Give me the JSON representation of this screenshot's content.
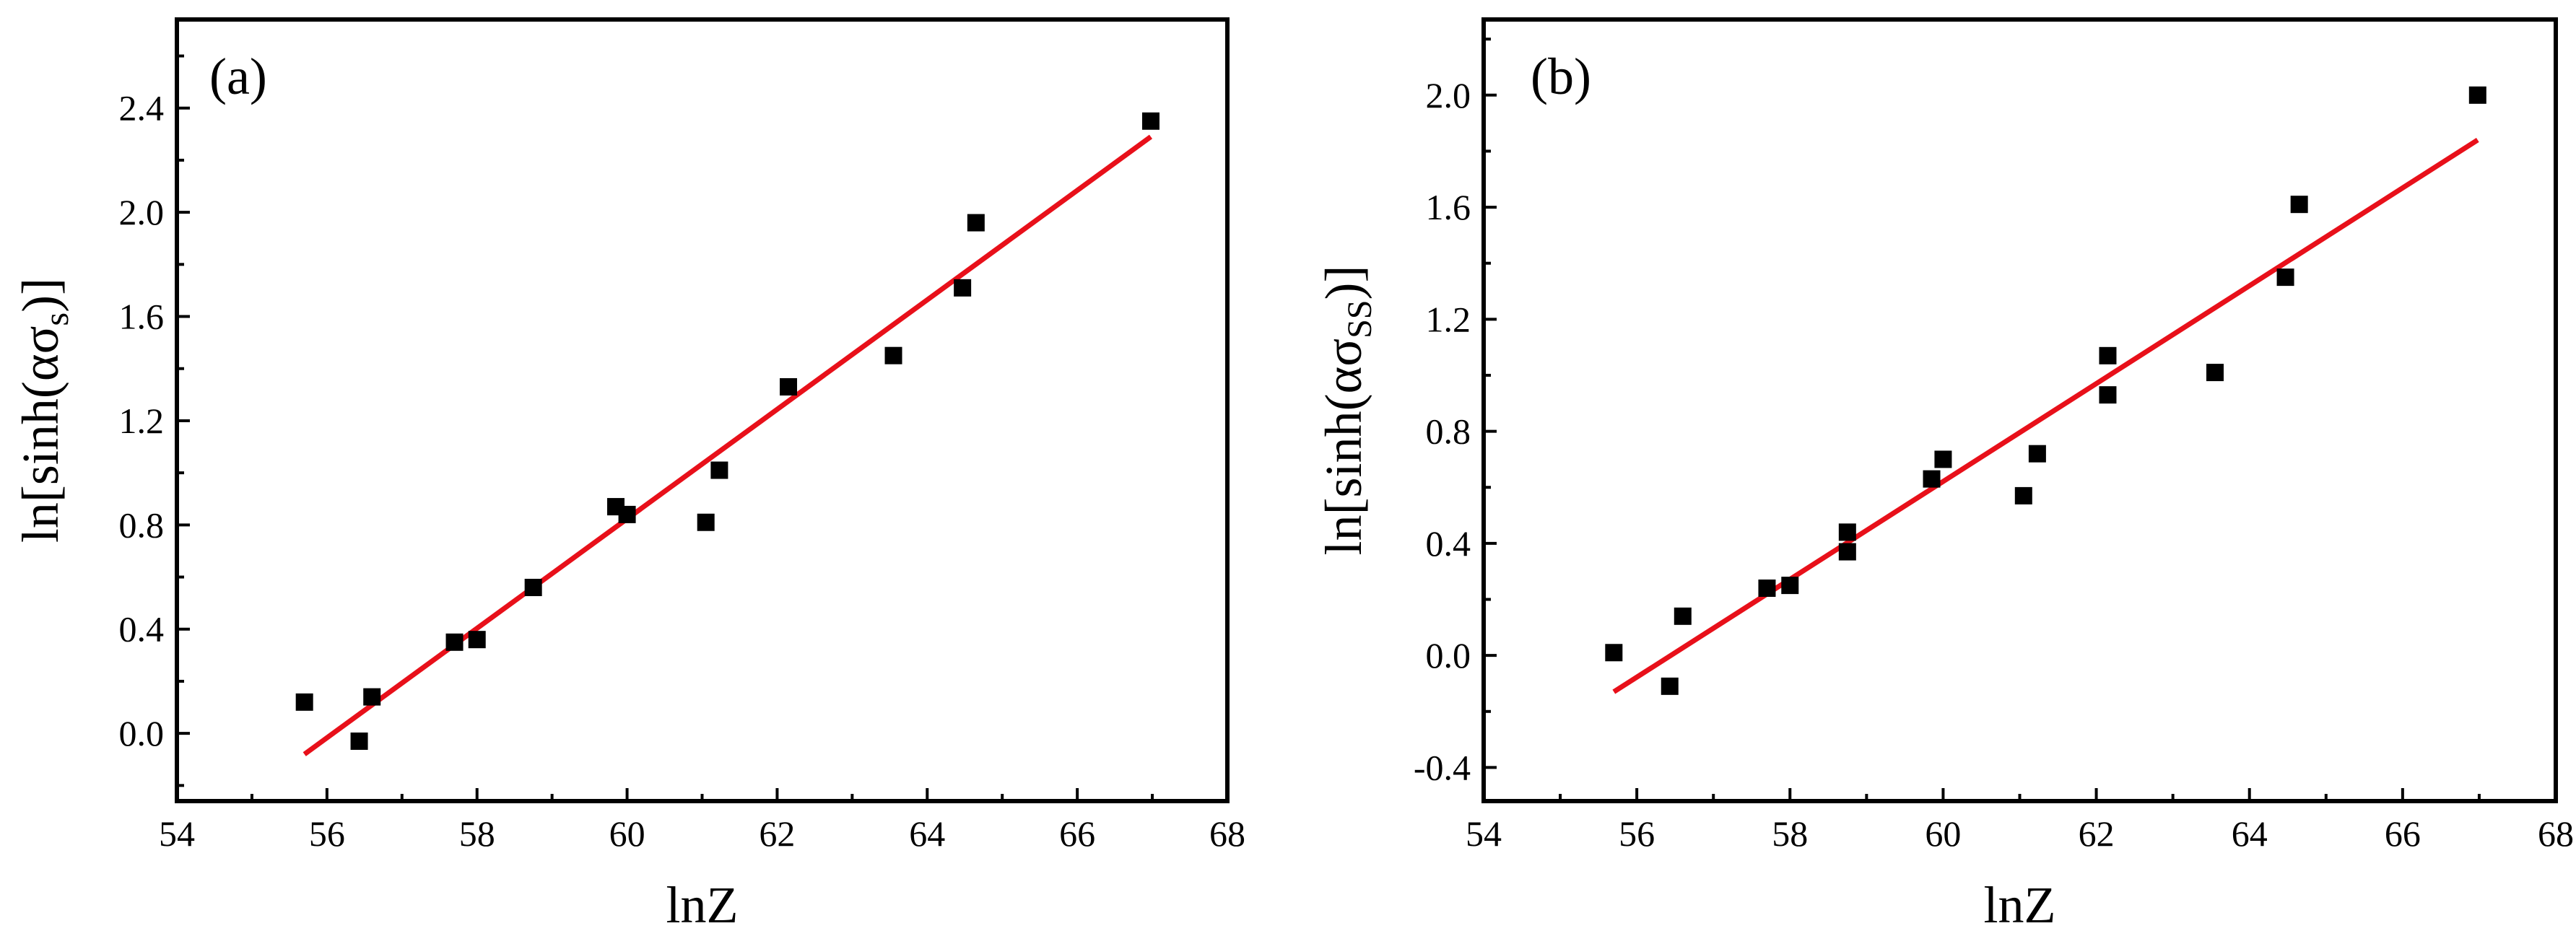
{
  "colors": {
    "fit_line": "#e8101a",
    "points": "#000000",
    "axes": "#000000",
    "background": "#ffffff"
  },
  "chart_data": [
    {
      "type": "scatter",
      "panel_label": "(a)",
      "xlabel": "lnZ",
      "ylabel_main": "ln[sinh(ασ",
      "ylabel_sub": "s",
      "ylabel_close": ")]",
      "xlim": [
        54,
        68
      ],
      "ylim": [
        -0.26,
        2.74
      ],
      "xticks": [
        54,
        56,
        58,
        60,
        62,
        64,
        66,
        68
      ],
      "xtick_labels": [
        "54",
        "56",
        "58",
        "60",
        "62",
        "64",
        "66",
        "68"
      ],
      "yticks": [
        0.0,
        0.4,
        0.8,
        1.2,
        1.6,
        2.0,
        2.4
      ],
      "ytick_labels": [
        "0.0",
        "0.4",
        "0.8",
        "1.2",
        "1.6",
        "2.0",
        "2.4"
      ],
      "grid": false,
      "series": [
        {
          "name": "data",
          "marker": "square",
          "points": [
            [
              55.7,
              0.12
            ],
            [
              56.43,
              -0.03
            ],
            [
              56.6,
              0.14
            ],
            [
              57.7,
              0.35
            ],
            [
              58.0,
              0.36
            ],
            [
              58.75,
              0.56
            ],
            [
              59.85,
              0.87
            ],
            [
              60.0,
              0.84
            ],
            [
              61.05,
              0.81
            ],
            [
              61.23,
              1.01
            ],
            [
              62.15,
              1.33
            ],
            [
              63.55,
              1.45
            ],
            [
              64.47,
              1.71
            ],
            [
              64.65,
              1.96
            ],
            [
              66.98,
              2.35
            ]
          ]
        },
        {
          "name": "linear fit",
          "line": [
            [
              55.7,
              -0.08
            ],
            [
              66.98,
              2.29
            ]
          ]
        }
      ]
    },
    {
      "type": "scatter",
      "panel_label": "(b)",
      "xlabel": "lnZ",
      "ylabel_main": "ln[sinh(ασ",
      "ylabel_sub": "SS",
      "ylabel_close": ")]",
      "xlim": [
        54,
        68
      ],
      "ylim": [
        -0.52,
        2.27
      ],
      "xticks": [
        54,
        56,
        58,
        60,
        62,
        64,
        66,
        68
      ],
      "xtick_labels": [
        "54",
        "56",
        "58",
        "60",
        "62",
        "64",
        "66",
        "68"
      ],
      "yticks": [
        -0.4,
        0.0,
        0.4,
        0.8,
        1.2,
        1.6,
        2.0
      ],
      "ytick_labels": [
        "-0.4",
        "0.0",
        "0.4",
        "0.8",
        "1.2",
        "1.6",
        "2.0"
      ],
      "grid": false,
      "series": [
        {
          "name": "data",
          "marker": "square",
          "points": [
            [
              55.7,
              0.01
            ],
            [
              56.43,
              -0.11
            ],
            [
              56.6,
              0.14
            ],
            [
              57.7,
              0.24
            ],
            [
              58.0,
              0.25
            ],
            [
              58.75,
              0.37
            ],
            [
              58.75,
              0.44
            ],
            [
              59.85,
              0.63
            ],
            [
              60.0,
              0.7
            ],
            [
              61.05,
              0.57
            ],
            [
              61.23,
              0.72
            ],
            [
              62.15,
              1.07
            ],
            [
              62.15,
              0.93
            ],
            [
              63.55,
              1.01
            ],
            [
              64.47,
              1.35
            ],
            [
              64.65,
              1.61
            ],
            [
              66.98,
              2.0
            ]
          ]
        },
        {
          "name": "linear fit",
          "line": [
            [
              55.7,
              -0.13
            ],
            [
              66.98,
              1.84
            ]
          ]
        }
      ]
    }
  ]
}
